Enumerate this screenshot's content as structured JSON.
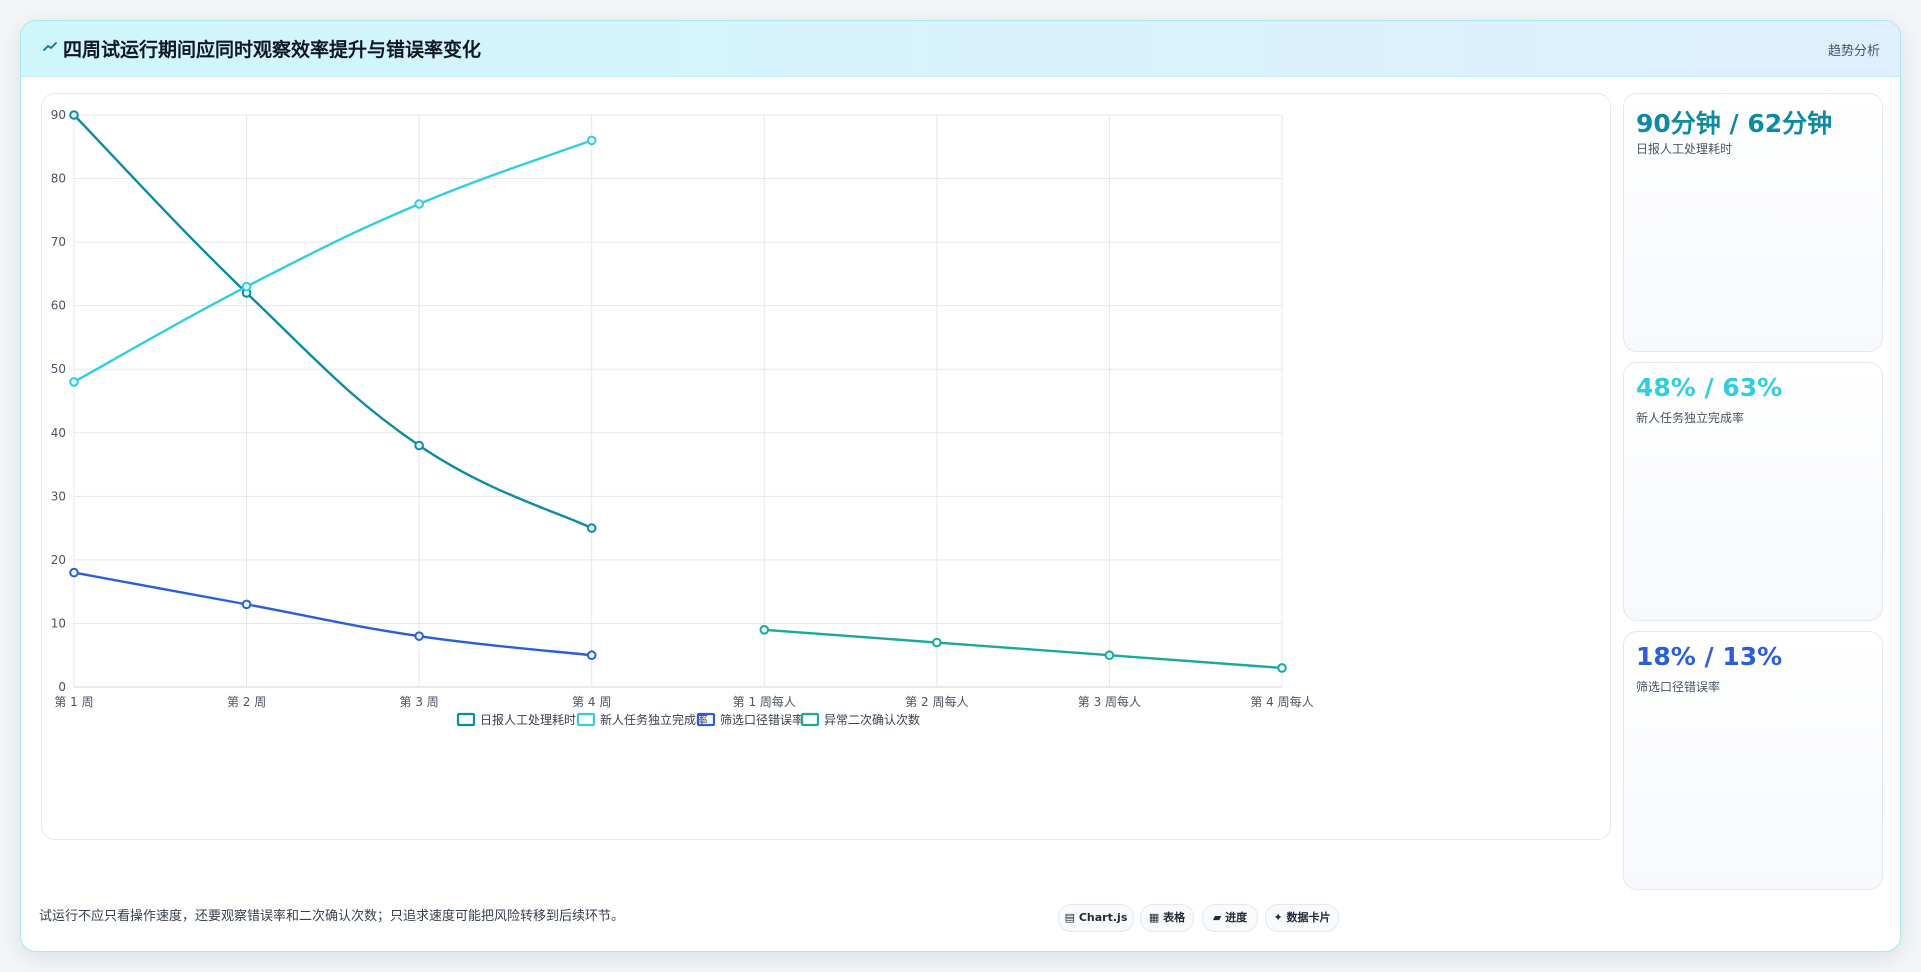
{
  "header": {
    "icon": "trend-line-icon",
    "title": "四周试运行期间应同时观察效率提升与错误率变化",
    "tag": "趋势分析"
  },
  "chart_data": {
    "type": "line",
    "categories": [
      "第 1 周",
      "第 2 周",
      "第 3 周",
      "第 4 周",
      "第 1 周每人",
      "第 2 周每人",
      "第 3 周每人",
      "第 4 周每人"
    ],
    "ylim": [
      0,
      90
    ],
    "yticks": [
      0,
      10,
      20,
      30,
      40,
      50,
      60,
      70,
      80,
      90
    ],
    "grid": true,
    "legend_position": "bottom",
    "series": [
      {
        "name": "日报人工处理耗时",
        "color": "#0e8ba3",
        "smooth": true,
        "values": [
          90,
          62,
          38,
          25,
          null,
          null,
          null,
          null
        ]
      },
      {
        "name": "新人任务独立完成率",
        "color": "#33cde0",
        "smooth": true,
        "values": [
          48,
          63,
          76,
          86,
          null,
          null,
          null,
          null
        ]
      },
      {
        "name": "筛选口径错误率",
        "color": "#2b5fd6",
        "smooth": true,
        "values": [
          18,
          13,
          8,
          5,
          null,
          null,
          null,
          null
        ]
      },
      {
        "name": "异常二次确认次数",
        "color": "#19aa9c",
        "smooth": false,
        "values": [
          null,
          null,
          null,
          null,
          9,
          7,
          5,
          3
        ]
      }
    ]
  },
  "kpis": [
    {
      "value": "90分钟 / 62分钟",
      "label": "日报人工处理耗时",
      "color": "#0e8ba3"
    },
    {
      "value": "48% / 63%",
      "label": "新人任务独立完成率",
      "color": "#33cde0"
    },
    {
      "value": "18% / 13%",
      "label": "筛选口径错误率",
      "color": "#2b5fd6"
    }
  ],
  "footer": {
    "note": "试运行不应只看操作速度，还要观察错误率和二次确认次数；只追求速度可能把风险转移到后续环节。",
    "pills": [
      {
        "icon": "chart-icon",
        "label": "Chart.js"
      },
      {
        "icon": "table-icon",
        "label": "表格"
      },
      {
        "icon": "progress-icon",
        "label": "进度"
      },
      {
        "icon": "sparkle-icon",
        "label": "数据卡片"
      }
    ]
  }
}
